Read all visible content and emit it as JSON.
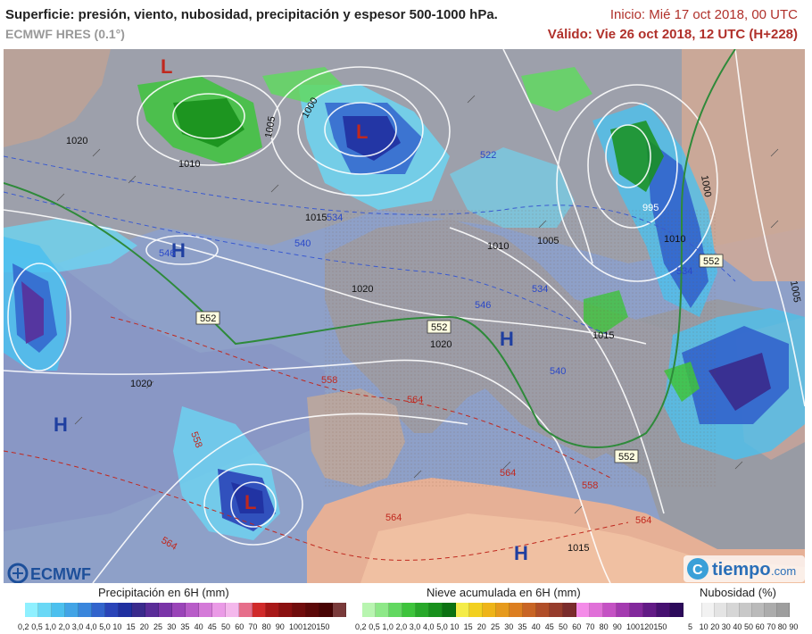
{
  "header": {
    "title": "Superficie: presión, viento, nubosidad, precipitación y espesor 500-1000 hPa.",
    "model": "ECMWF HRES (0.1°)",
    "init": "Inicio: Mié 17 oct 2018, 00 UTC",
    "valid": "Válido: Vie 26 oct 2018, 12 UTC (H+228)"
  },
  "map": {
    "pressure_centers": [
      {
        "letter": "L",
        "color": "#c0281e"
      },
      {
        "letter": "L",
        "color": "#c0281e"
      },
      {
        "letter": "L",
        "color": "#c0281e"
      },
      {
        "letter": "H",
        "color": "#1f3fa0"
      },
      {
        "letter": "H",
        "color": "#1f3fa0"
      },
      {
        "letter": "H",
        "color": "#1f3fa0"
      },
      {
        "letter": "H",
        "color": "#1f3fa0"
      }
    ],
    "isobar_labels": [
      "1020",
      "1010",
      "1005",
      "1000",
      "1015",
      "1020",
      "1010",
      "1005",
      "1015",
      "1020",
      "1020",
      "1015",
      "1000",
      "995",
      "1010",
      "1005"
    ],
    "thickness_labels_blue": [
      "534",
      "540",
      "522",
      "534",
      "546",
      "540",
      "546",
      "534"
    ],
    "thickness_labels_red": [
      "558",
      "564",
      "558",
      "564",
      "564",
      "558",
      "564",
      "564"
    ],
    "thickness_552_boxes": [
      "552",
      "552",
      "552",
      "552"
    ]
  },
  "legends": {
    "precip": {
      "title": "Precipitación en 6H (mm)",
      "colors": [
        "#8ff0ff",
        "#6ad8f6",
        "#4cc0ee",
        "#42a4e6",
        "#3a86dc",
        "#3264cc",
        "#2a44b8",
        "#2030a0",
        "#3a2a8c",
        "#5a2c98",
        "#7a34a8",
        "#9a44b8",
        "#b85cc8",
        "#d47ad8",
        "#ea9ae6",
        "#f4b8ec",
        "#e66e8a",
        "#d02a2a",
        "#a81818",
        "#8a1010",
        "#700c0c",
        "#5c0808",
        "#480404",
        "#7a3a3a"
      ],
      "ticks": [
        "0,2",
        "0,5",
        "1,0",
        "2,0",
        "3,0",
        "4,0",
        "5,0",
        "10",
        "15",
        "20",
        "25",
        "30",
        "35",
        "40",
        "45",
        "50",
        "60",
        "70",
        "80",
        "90",
        "100",
        "120",
        "150"
      ]
    },
    "snow": {
      "title": "Nieve acumulada en 6H (mm)",
      "colors": [
        "#b8f5b0",
        "#8ee888",
        "#62d860",
        "#3ec43c",
        "#28a82a",
        "#18901c",
        "#0c7212",
        "#f4ec48",
        "#f2d020",
        "#eeb418",
        "#e69a1c",
        "#dc7e20",
        "#c86424",
        "#b04e28",
        "#963c2c",
        "#7a2c2c",
        "#f48ce8",
        "#e070d8",
        "#c452c4",
        "#a43ab0",
        "#82289c",
        "#621a86",
        "#461070",
        "#2c0a5a"
      ],
      "ticks": [
        "0,2",
        "0,5",
        "1,0",
        "2,0",
        "3,0",
        "4,0",
        "5,0",
        "10",
        "15",
        "20",
        "25",
        "30",
        "35",
        "40",
        "45",
        "50",
        "60",
        "70",
        "80",
        "90",
        "100",
        "120",
        "150"
      ]
    },
    "cloud": {
      "title": "Nubosidad (%)",
      "colors": [
        "#ffffff",
        "#f2f2f2",
        "#e4e4e4",
        "#d6d6d6",
        "#c8c8c8",
        "#bababa",
        "#acacac",
        "#9e9e9e"
      ],
      "ticks": [
        "5",
        "10",
        "20",
        "30",
        "40",
        "50",
        "60",
        "70",
        "80",
        "90"
      ]
    }
  },
  "logos": {
    "ecmwf": "ECMWF",
    "tiempo_main": "tiempo",
    "tiempo_suffix": ".com"
  }
}
